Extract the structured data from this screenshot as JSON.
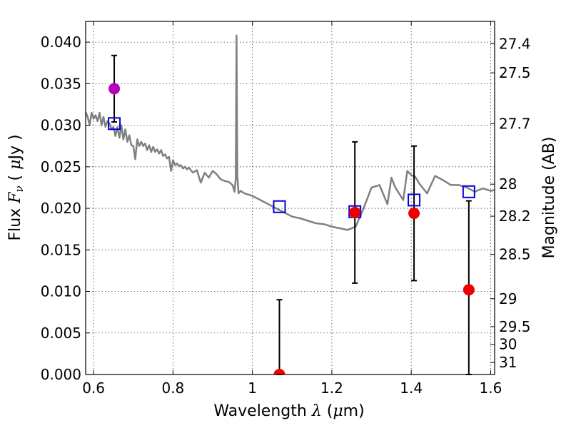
{
  "chart_data": {
    "type": "scatter",
    "title": "",
    "xlabel": {
      "prefix": "Wavelength ",
      "symbol": "λ",
      "open": " (",
      "unit_symbol": "μ",
      "unit": "m)"
    },
    "ylabel": {
      "prefix": "Flux ",
      "symbol": "F",
      "subscript": "ν",
      "open": " ( ",
      "unit_symbol": "μ",
      "unit": "Jy )"
    },
    "y2label": "Magnitude (AB)",
    "xlim": [
      0.58,
      1.61
    ],
    "ylim": [
      0.0,
      0.0425
    ],
    "grid": true,
    "xticks": [
      {
        "v": 0.6,
        "label": "0.6"
      },
      {
        "v": 0.8,
        "label": "0.8"
      },
      {
        "v": 1.0,
        "label": "1"
      },
      {
        "v": 1.2,
        "label": "1.2"
      },
      {
        "v": 1.4,
        "label": "1.4"
      },
      {
        "v": 1.6,
        "label": "1.6"
      }
    ],
    "yticks": [
      {
        "v": 0.0,
        "label": "0.000"
      },
      {
        "v": 0.005,
        "label": "0.005"
      },
      {
        "v": 0.01,
        "label": "0.010"
      },
      {
        "v": 0.015,
        "label": "0.015"
      },
      {
        "v": 0.02,
        "label": "0.020"
      },
      {
        "v": 0.025,
        "label": "0.025"
      },
      {
        "v": 0.03,
        "label": "0.030"
      },
      {
        "v": 0.035,
        "label": "0.035"
      },
      {
        "v": 0.04,
        "label": "0.040"
      }
    ],
    "mag_ticks": [
      {
        "mag": 27.4,
        "label": "27.4"
      },
      {
        "mag": 27.5,
        "label": "27.5"
      },
      {
        "mag": 27.7,
        "label": "27.7"
      },
      {
        "mag": 28,
        "label": "28"
      },
      {
        "mag": 28.2,
        "label": "28.2"
      },
      {
        "mag": 28.5,
        "label": "28.5"
      },
      {
        "mag": 29,
        "label": "29"
      },
      {
        "mag": 29.5,
        "label": "29.5"
      },
      {
        "mag": 30,
        "label": "30"
      },
      {
        "mag": 31,
        "label": "31"
      }
    ],
    "mag_zero_point": 23.9,
    "series": [
      {
        "name": "model-spectrum",
        "kind": "line",
        "color": "#808080",
        "x": [
          0.58,
          0.585,
          0.59,
          0.595,
          0.6,
          0.605,
          0.61,
          0.615,
          0.62,
          0.625,
          0.63,
          0.635,
          0.64,
          0.645,
          0.65,
          0.655,
          0.66,
          0.665,
          0.67,
          0.675,
          0.68,
          0.685,
          0.69,
          0.695,
          0.7,
          0.705,
          0.71,
          0.715,
          0.72,
          0.725,
          0.73,
          0.735,
          0.74,
          0.745,
          0.75,
          0.755,
          0.76,
          0.765,
          0.77,
          0.775,
          0.78,
          0.785,
          0.79,
          0.795,
          0.8,
          0.805,
          0.81,
          0.815,
          0.82,
          0.825,
          0.83,
          0.835,
          0.84,
          0.85,
          0.86,
          0.87,
          0.88,
          0.89,
          0.9,
          0.91,
          0.92,
          0.93,
          0.94,
          0.95,
          0.955,
          0.958,
          0.96,
          0.962,
          0.965,
          0.97,
          0.98,
          1.0,
          1.02,
          1.04,
          1.06,
          1.08,
          1.1,
          1.12,
          1.14,
          1.16,
          1.18,
          1.2,
          1.22,
          1.24,
          1.26,
          1.28,
          1.3,
          1.32,
          1.34,
          1.35,
          1.36,
          1.38,
          1.39,
          1.4,
          1.41,
          1.42,
          1.44,
          1.46,
          1.48,
          1.5,
          1.52,
          1.54,
          1.56,
          1.58,
          1.6,
          1.61
        ],
        "y": [
          0.0316,
          0.031,
          0.03,
          0.0315,
          0.0308,
          0.0312,
          0.0305,
          0.0315,
          0.03,
          0.031,
          0.0298,
          0.0305,
          0.0302,
          0.0295,
          0.0298,
          0.0287,
          0.0298,
          0.0285,
          0.03,
          0.0283,
          0.0295,
          0.028,
          0.0288,
          0.0276,
          0.0275,
          0.0259,
          0.0283,
          0.0275,
          0.028,
          0.0275,
          0.0278,
          0.027,
          0.0276,
          0.0268,
          0.0274,
          0.0268,
          0.0271,
          0.0266,
          0.027,
          0.0263,
          0.0265,
          0.026,
          0.0262,
          0.0245,
          0.0258,
          0.0252,
          0.0254,
          0.0251,
          0.0252,
          0.0248,
          0.025,
          0.0247,
          0.0249,
          0.0243,
          0.0246,
          0.0231,
          0.0243,
          0.0237,
          0.0245,
          0.0241,
          0.0235,
          0.0233,
          0.0232,
          0.0228,
          0.022,
          0.0235,
          0.0408,
          0.024,
          0.0218,
          0.0221,
          0.0218,
          0.0215,
          0.021,
          0.0205,
          0.02,
          0.0195,
          0.019,
          0.0188,
          0.0185,
          0.0182,
          0.0181,
          0.0178,
          0.0176,
          0.0174,
          0.0178,
          0.02,
          0.0225,
          0.0228,
          0.0205,
          0.0237,
          0.0225,
          0.021,
          0.0245,
          0.024,
          0.0238,
          0.023,
          0.0218,
          0.0239,
          0.0234,
          0.0228,
          0.0228,
          0.0225,
          0.022,
          0.0224,
          0.0221,
          0.0222
        ]
      },
      {
        "name": "observed-fluxes",
        "kind": "points",
        "marker": "filled-circle",
        "points": [
          {
            "x": 0.652,
            "y": 0.0344,
            "err": 0.004,
            "color": "#bb00bb"
          },
          {
            "x": 1.068,
            "y": 0.0,
            "err": 0.009,
            "color": "#ee0000"
          },
          {
            "x": 1.258,
            "y": 0.0195,
            "err": 0.0085,
            "color": "#ee0000"
          },
          {
            "x": 1.407,
            "y": 0.0194,
            "err": 0.0081,
            "color": "#ee0000"
          },
          {
            "x": 1.545,
            "y": 0.0102,
            "err": 0.0107,
            "color": "#ee0000"
          }
        ]
      },
      {
        "name": "model-band-fluxes",
        "kind": "points",
        "marker": "open-square",
        "color": "#0000dd",
        "points": [
          {
            "x": 0.652,
            "y": 0.0302
          },
          {
            "x": 1.068,
            "y": 0.0202
          },
          {
            "x": 1.258,
            "y": 0.0196
          },
          {
            "x": 1.407,
            "y": 0.021
          },
          {
            "x": 1.545,
            "y": 0.022
          }
        ]
      }
    ]
  }
}
